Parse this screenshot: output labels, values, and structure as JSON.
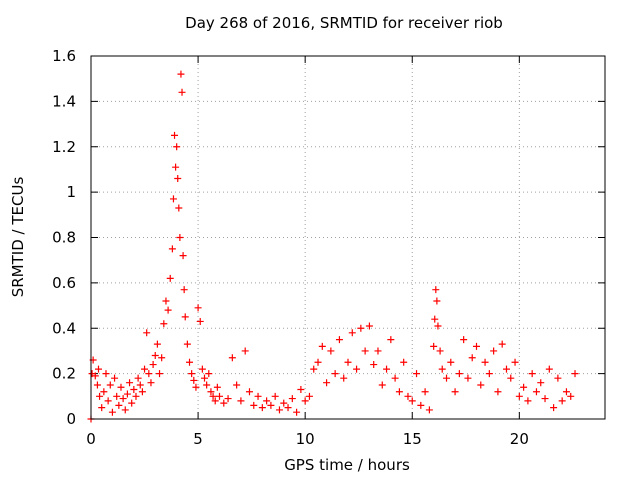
{
  "chart_data": {
    "type": "scatter",
    "title": "Day 268 of 2016, SRMTID for receiver riob",
    "xlabel": "GPS time / hours",
    "ylabel": "SRMTID / TECUs",
    "xlim": [
      0,
      24
    ],
    "ylim": [
      0,
      1.6
    ],
    "xticks": [
      0,
      5,
      10,
      15,
      20
    ],
    "yticks": [
      0,
      0.2,
      0.4,
      0.6,
      0.8,
      1,
      1.2,
      1.4,
      1.6
    ],
    "grid": true,
    "marker": "+",
    "color": "#ff0000",
    "series": [
      {
        "x": [
          0.0,
          0.05,
          0.1,
          0.2,
          0.3,
          0.35,
          0.4,
          0.5,
          0.6,
          0.7,
          0.8,
          0.9,
          1.0,
          1.1,
          1.2,
          1.3,
          1.4,
          1.5,
          1.6,
          1.7,
          1.8,
          1.9,
          2.0,
          2.1,
          2.2,
          2.3,
          2.4,
          2.5,
          2.6,
          2.7,
          2.8,
          2.9,
          3.0,
          3.1,
          3.2,
          3.3,
          3.4,
          3.5,
          3.6,
          3.7,
          3.8,
          3.85,
          3.9,
          3.95,
          4.0,
          4.05,
          4.1,
          4.15,
          4.2,
          4.25,
          4.3,
          4.35,
          4.4,
          4.5,
          4.6,
          4.7,
          4.8,
          4.9,
          5.0,
          5.1,
          5.2,
          5.3,
          5.4,
          5.5,
          5.6,
          5.7,
          5.8,
          5.9,
          6.0,
          6.2,
          6.4,
          6.6,
          6.8,
          7.0,
          7.2,
          7.4,
          7.6,
          7.8,
          8.0,
          8.2,
          8.4,
          8.6,
          8.8,
          9.0,
          9.2,
          9.4,
          9.6,
          9.8,
          10.0,
          10.2,
          10.4,
          10.6,
          10.8,
          11.0,
          11.2,
          11.4,
          11.6,
          11.8,
          12.0,
          12.2,
          12.4,
          12.6,
          12.8,
          13.0,
          13.2,
          13.4,
          13.6,
          13.8,
          14.0,
          14.2,
          14.4,
          14.6,
          14.8,
          15.0,
          15.2,
          15.4,
          15.6,
          15.8,
          16.0,
          16.05,
          16.1,
          16.15,
          16.2,
          16.3,
          16.4,
          16.6,
          16.8,
          17.0,
          17.2,
          17.4,
          17.6,
          17.8,
          18.0,
          18.2,
          18.4,
          18.6,
          18.8,
          19.0,
          19.2,
          19.4,
          19.6,
          19.8,
          20.0,
          20.2,
          20.4,
          20.6,
          20.8,
          21.0,
          21.2,
          21.4,
          21.6,
          21.8,
          22.0,
          22.2,
          22.4,
          22.6
        ],
        "y": [
          0.0,
          0.2,
          0.26,
          0.19,
          0.15,
          0.22,
          0.1,
          0.05,
          0.12,
          0.2,
          0.08,
          0.15,
          0.03,
          0.18,
          0.1,
          0.06,
          0.14,
          0.09,
          0.04,
          0.11,
          0.16,
          0.07,
          0.13,
          0.1,
          0.18,
          0.15,
          0.12,
          0.22,
          0.38,
          0.2,
          0.16,
          0.24,
          0.28,
          0.33,
          0.2,
          0.27,
          0.42,
          0.52,
          0.48,
          0.62,
          0.75,
          0.97,
          1.25,
          1.11,
          1.2,
          1.06,
          0.93,
          0.8,
          1.52,
          1.44,
          0.72,
          0.57,
          0.45,
          0.33,
          0.25,
          0.2,
          0.17,
          0.14,
          0.49,
          0.43,
          0.22,
          0.18,
          0.15,
          0.2,
          0.12,
          0.1,
          0.08,
          0.14,
          0.1,
          0.07,
          0.09,
          0.27,
          0.15,
          0.08,
          0.3,
          0.12,
          0.06,
          0.1,
          0.05,
          0.08,
          0.06,
          0.1,
          0.04,
          0.07,
          0.05,
          0.09,
          0.03,
          0.13,
          0.08,
          0.1,
          0.22,
          0.25,
          0.32,
          0.16,
          0.3,
          0.2,
          0.35,
          0.18,
          0.25,
          0.38,
          0.22,
          0.4,
          0.3,
          0.41,
          0.24,
          0.3,
          0.15,
          0.22,
          0.35,
          0.18,
          0.12,
          0.25,
          0.1,
          0.08,
          0.2,
          0.06,
          0.12,
          0.04,
          0.32,
          0.44,
          0.57,
          0.52,
          0.41,
          0.3,
          0.22,
          0.18,
          0.25,
          0.12,
          0.2,
          0.35,
          0.18,
          0.27,
          0.32,
          0.15,
          0.25,
          0.2,
          0.3,
          0.12,
          0.33,
          0.22,
          0.18,
          0.25,
          0.1,
          0.14,
          0.08,
          0.2,
          0.12,
          0.16,
          0.09,
          0.22,
          0.05,
          0.18,
          0.08,
          0.12,
          0.1,
          0.2
        ]
      }
    ]
  }
}
